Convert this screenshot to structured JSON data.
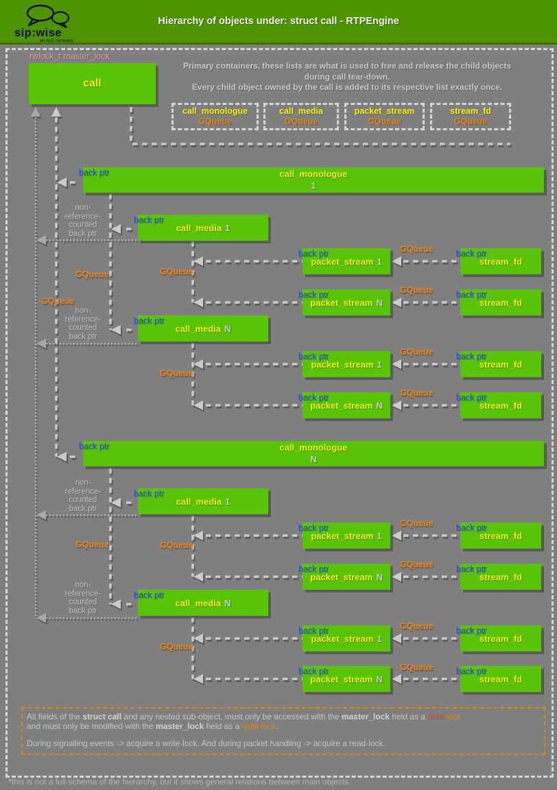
{
  "header": {
    "title": "Hierarchy of objects under: struct call - RTPEngine",
    "logo_text": "sip:wise",
    "logo_sub": "an ALE company"
  },
  "intro": {
    "lines": [
      "Primary containers, these lists are what is used to free and release the child objects",
      "during call tear-down.",
      "Every child object owned by the call is added to its respective list exactly once."
    ]
  },
  "containers": [
    {
      "title": "call_monologue",
      "sub": "GQueue"
    },
    {
      "title": "call_media",
      "sub": "GQueue"
    },
    {
      "title": "packet_stream",
      "sub": "GQueue"
    },
    {
      "title": "stream_fd",
      "sub": "GQueue"
    }
  ],
  "labels": {
    "back_ptr": "back ptr",
    "gqueue": "GQueue",
    "rwlock": "rwlock_t master_lock",
    "nonref_lines": [
      "non-",
      "reference-",
      "counted",
      "back ptr"
    ]
  },
  "nodes": [
    {
      "title": "call",
      "num": ""
    },
    {
      "title": "call_monologue",
      "num": "1"
    },
    {
      "title": "call_media",
      "num": "1"
    },
    {
      "title": "packet_stream",
      "num": "1"
    },
    {
      "title": "stream_fd",
      "num": ""
    },
    {
      "title": "packet_stream",
      "num": "N"
    },
    {
      "title": "stream_fd",
      "num": ""
    },
    {
      "title": "call_media",
      "num": "N"
    },
    {
      "title": "packet_stream",
      "num": "1"
    },
    {
      "title": "stream_fd",
      "num": ""
    },
    {
      "title": "packet_stream",
      "num": "N"
    },
    {
      "title": "stream_fd",
      "num": ""
    },
    {
      "title": "call_monologue",
      "num": "N"
    },
    {
      "title": "call_media",
      "num": "1"
    },
    {
      "title": "packet_stream",
      "num": "1"
    },
    {
      "title": "stream_fd",
      "num": ""
    },
    {
      "title": "packet_stream",
      "num": "N"
    },
    {
      "title": "stream_fd",
      "num": ""
    },
    {
      "title": "call_media",
      "num": "N"
    },
    {
      "title": "packet_stream",
      "num": "1"
    },
    {
      "title": "stream_fd",
      "num": ""
    },
    {
      "title": "packet_stream",
      "num": "N"
    },
    {
      "title": "stream_fd",
      "num": ""
    }
  ],
  "footer": {
    "lines": [
      [
        {
          "t": "All fields of the "
        },
        {
          "t": "struct call",
          "b": true
        },
        {
          "t": " and any nested sub-object, must only be accessed with the "
        },
        {
          "t": "master_lock",
          "b": true
        },
        {
          "t": " held as a "
        },
        {
          "t": "read",
          "c": "#c14b3a"
        },
        {
          "t": " lock",
          "c": "#e0820e"
        },
        {
          "t": ",",
          "c": "#c14b3a"
        }
      ],
      [
        {
          "t": "and must only be modified with the "
        },
        {
          "t": "master_lock",
          "b": true
        },
        {
          "t": " held as a "
        },
        {
          "t": "write lock",
          "c": "#e0820e"
        },
        {
          "t": "."
        }
      ],
      [],
      [
        {
          "t": "During signalling events -> acquire a write-lock. And during packet handling -> acquire a read-lock."
        }
      ]
    ]
  },
  "note": "*this is not a full schema of the hierarchy, but it shows general relations between main objects."
}
